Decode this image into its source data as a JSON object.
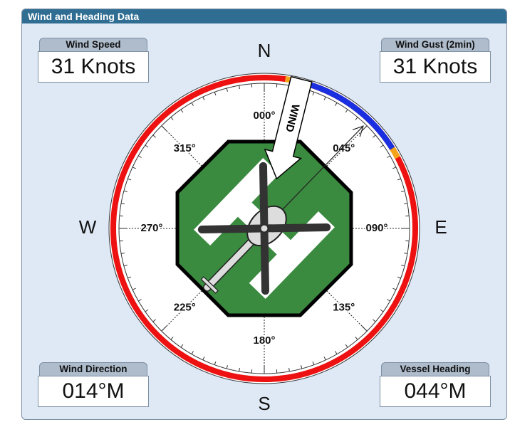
{
  "panel": {
    "title": "Wind and Heading Data"
  },
  "readouts": [
    {
      "label": "Wind Speed",
      "value": "31 Knots"
    },
    {
      "label": "Wind Gust (2min)",
      "value": "31 Knots"
    },
    {
      "label": "Wind Direction",
      "value": "014°M"
    },
    {
      "label": "Vessel Heading",
      "value": "044°M"
    }
  ],
  "compass": {
    "cardinals": [
      "N",
      "E",
      "S",
      "W"
    ],
    "degree_labels": [
      "000°",
      "045°",
      "090°",
      "135°",
      "180°",
      "225°",
      "270°",
      "315°"
    ],
    "wind_arrow_label": "WIND"
  }
}
